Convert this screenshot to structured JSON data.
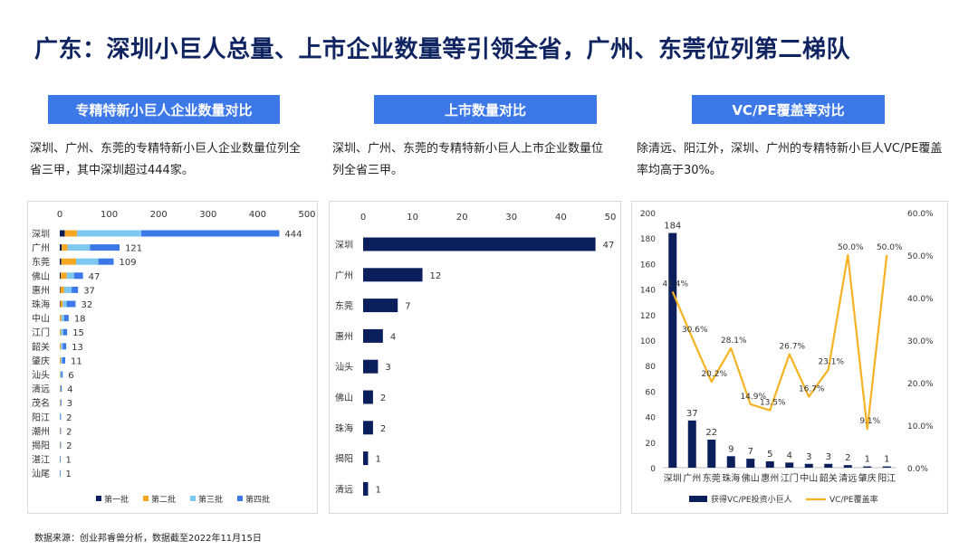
{
  "page": {
    "title": "广东：深圳小巨人总量、上市企业数量等引领全省，广州、东莞位列第二梯队",
    "source": "数据来源：创业邦睿兽分析，数据截至2022年11月15日"
  },
  "sections": [
    {
      "header": "专精特新小巨人企业数量对比",
      "desc": "深圳、广州、东莞的专精特新小巨人企业数量位列全省三甲，其中深圳超过444家。"
    },
    {
      "header": "上市数量对比",
      "desc": "深圳、广州、东莞的专精特新小巨人上市企业数量位列全省三甲。"
    },
    {
      "header": "VC/PE覆盖率对比",
      "desc": "除清远、阳江外，深圳、广州的专精特新小巨人VC/PE覆盖率均高于30%。"
    }
  ],
  "colors": {
    "navy": "#0b1f5c",
    "orange": "#f5a623",
    "lightblue": "#7ec8f0",
    "blue": "#3d78e8",
    "gold": "#f5b324",
    "header": "#3d78e8"
  },
  "chart_data": [
    {
      "type": "bar",
      "orientation": "horizontal",
      "stacked": true,
      "categories": [
        "深圳",
        "广州",
        "东莞",
        "佛山",
        "惠州",
        "珠海",
        "中山",
        "江门",
        "韶关",
        "肇庆",
        "汕头",
        "清远",
        "茂名",
        "阳江",
        "潮州",
        "揭阳",
        "湛江",
        "汕尾"
      ],
      "totals": [
        444,
        121,
        109,
        47,
        37,
        32,
        18,
        15,
        13,
        11,
        6,
        4,
        3,
        2,
        2,
        2,
        1,
        1
      ],
      "series": [
        {
          "name": "第一批",
          "color": "#0b1f5c",
          "values": [
            10,
            4,
            3,
            2,
            1,
            1,
            0,
            0,
            0,
            0,
            0,
            0,
            0,
            0,
            0,
            0,
            0,
            0
          ]
        },
        {
          "name": "第二批",
          "color": "#f5a623",
          "values": [
            25,
            12,
            30,
            12,
            8,
            5,
            3,
            2,
            2,
            2,
            1,
            1,
            1,
            0,
            1,
            1,
            0,
            0
          ]
        },
        {
          "name": "第三批",
          "color": "#7ec8f0",
          "values": [
            130,
            45,
            45,
            15,
            15,
            8,
            6,
            5,
            4,
            3,
            2,
            1,
            1,
            1,
            0,
            0,
            0,
            0
          ]
        },
        {
          "name": "第四批",
          "color": "#3d78e8",
          "values": [
            279,
            60,
            31,
            18,
            13,
            18,
            9,
            8,
            7,
            6,
            3,
            2,
            1,
            1,
            1,
            1,
            1,
            1
          ]
        }
      ],
      "xlim": [
        0,
        500
      ],
      "xticks": [
        "0",
        "100",
        "200",
        "300",
        "400",
        "500"
      ],
      "legend": "bottom"
    },
    {
      "type": "bar",
      "orientation": "horizontal",
      "categories": [
        "深圳",
        "广州",
        "东莞",
        "惠州",
        "汕头",
        "佛山",
        "珠海",
        "揭阳",
        "清远"
      ],
      "values": [
        47,
        12,
        7,
        4,
        3,
        2,
        2,
        1,
        1
      ],
      "xlim": [
        0,
        50
      ],
      "xticks": [
        "0",
        "10",
        "20",
        "30",
        "40",
        "50"
      ]
    },
    {
      "type": "bar",
      "combo": "bar+line",
      "categories": [
        "深圳",
        "广州",
        "东莞",
        "珠海",
        "佛山",
        "惠州",
        "江门",
        "中山",
        "韶关",
        "清远",
        "肇庆",
        "阳江"
      ],
      "series": [
        {
          "name": "获得VC/PE投资小巨人",
          "type": "bar",
          "color": "#0b1f5c",
          "axis": "left",
          "values": [
            184,
            37,
            22,
            9,
            7,
            5,
            4,
            3,
            3,
            2,
            1,
            1
          ]
        },
        {
          "name": "VC/PE覆盖率",
          "type": "line",
          "color": "#f5b324",
          "axis": "right",
          "values": [
            41.4,
            30.6,
            20.2,
            28.1,
            14.9,
            13.5,
            26.7,
            16.7,
            23.1,
            50.0,
            9.1,
            50.0
          ],
          "labels": [
            "41.4%",
            "30.6%",
            "20.2%",
            "28.1%",
            "14.9%",
            "13.5%",
            "26.7%",
            "16.7%",
            "23.1%",
            "50.0%",
            "9.1%",
            "50.0%"
          ]
        }
      ],
      "ylim": [
        0,
        200
      ],
      "yticks": [
        "0",
        "20",
        "40",
        "60",
        "80",
        "100",
        "120",
        "140",
        "160",
        "180",
        "200"
      ],
      "y2lim": [
        0,
        60
      ],
      "y2ticks": [
        "0.0%",
        "10.0%",
        "20.0%",
        "30.0%",
        "40.0%",
        "50.0%",
        "60.0%"
      ],
      "legend": "bottom"
    }
  ]
}
